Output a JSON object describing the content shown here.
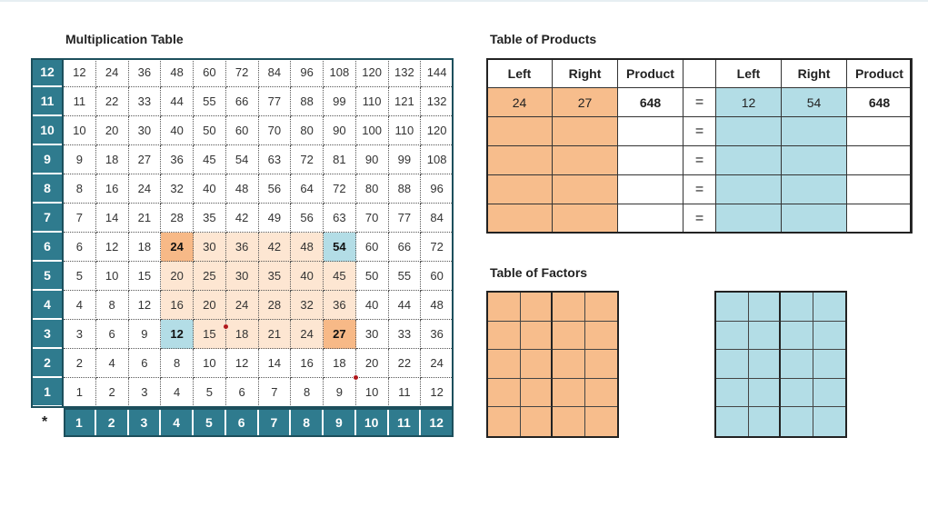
{
  "titles": {
    "multiplication": "Multiplication Table",
    "products": "Table of Products",
    "factors": "Table of Factors"
  },
  "grid": {
    "corner_symbol": "*",
    "row_labels": [
      12,
      11,
      10,
      9,
      8,
      7,
      6,
      5,
      4,
      3,
      2,
      1
    ],
    "col_labels": [
      1,
      2,
      3,
      4,
      5,
      6,
      7,
      8,
      9,
      10,
      11,
      12
    ],
    "highlight_region": {
      "rows": [
        3,
        6
      ],
      "cols": [
        4,
        9
      ]
    },
    "highlight_left": [
      [
        6,
        4
      ],
      [
        3,
        9
      ]
    ],
    "highlight_right": [
      [
        6,
        9
      ],
      [
        3,
        4
      ]
    ]
  },
  "products_table": {
    "headers": [
      "Left",
      "Right",
      "Product",
      "",
      "Left",
      "Right",
      "Product"
    ],
    "rows": [
      {
        "l1": "24",
        "r1": "27",
        "p1": "648",
        "eq": "=",
        "l2": "12",
        "r2": "54",
        "p2": "648"
      },
      {
        "l1": "",
        "r1": "",
        "p1": "",
        "eq": "=",
        "l2": "",
        "r2": "",
        "p2": ""
      },
      {
        "l1": "",
        "r1": "",
        "p1": "",
        "eq": "=",
        "l2": "",
        "r2": "",
        "p2": ""
      },
      {
        "l1": "",
        "r1": "",
        "p1": "",
        "eq": "=",
        "l2": "",
        "r2": "",
        "p2": ""
      },
      {
        "l1": "",
        "r1": "",
        "p1": "",
        "eq": "=",
        "l2": "",
        "r2": "",
        "p2": ""
      }
    ]
  },
  "colors": {
    "axis_bg": "#2f7b8e",
    "left_highlight": "#f7b987",
    "right_highlight": "#b3dde6",
    "region": "#fde6d2"
  }
}
